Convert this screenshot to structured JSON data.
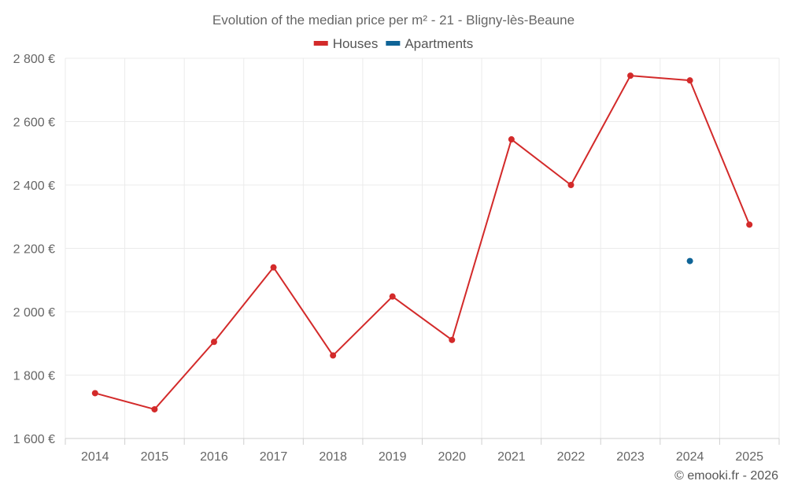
{
  "chart_data": {
    "type": "line",
    "title": "Evolution of the median price per m² - 21 - Bligny-lès-Beaune",
    "xlabel": "",
    "ylabel": "",
    "categories": [
      "2014",
      "2015",
      "2016",
      "2017",
      "2018",
      "2019",
      "2020",
      "2021",
      "2022",
      "2023",
      "2024",
      "2025"
    ],
    "ylim": [
      1600,
      2800
    ],
    "yticks": [
      1600,
      1800,
      2000,
      2200,
      2400,
      2600,
      2800
    ],
    "ytick_labels": [
      "1 600 €",
      "1 800 €",
      "2 000 €",
      "2 200 €",
      "2 400 €",
      "2 600 €",
      "2 800 €"
    ],
    "grid": true,
    "legend_position": "top-center",
    "series": [
      {
        "name": "Houses",
        "color": "#d32a2a",
        "values": [
          1743,
          1692,
          1905,
          2140,
          1862,
          2048,
          1911,
          2544,
          2400,
          2745,
          2730,
          2275
        ]
      },
      {
        "name": "Apartments",
        "color": "#0f6497",
        "values": [
          null,
          null,
          null,
          null,
          null,
          null,
          null,
          null,
          null,
          null,
          2160,
          null
        ]
      }
    ]
  },
  "credit": "© emooki.fr - 2026"
}
